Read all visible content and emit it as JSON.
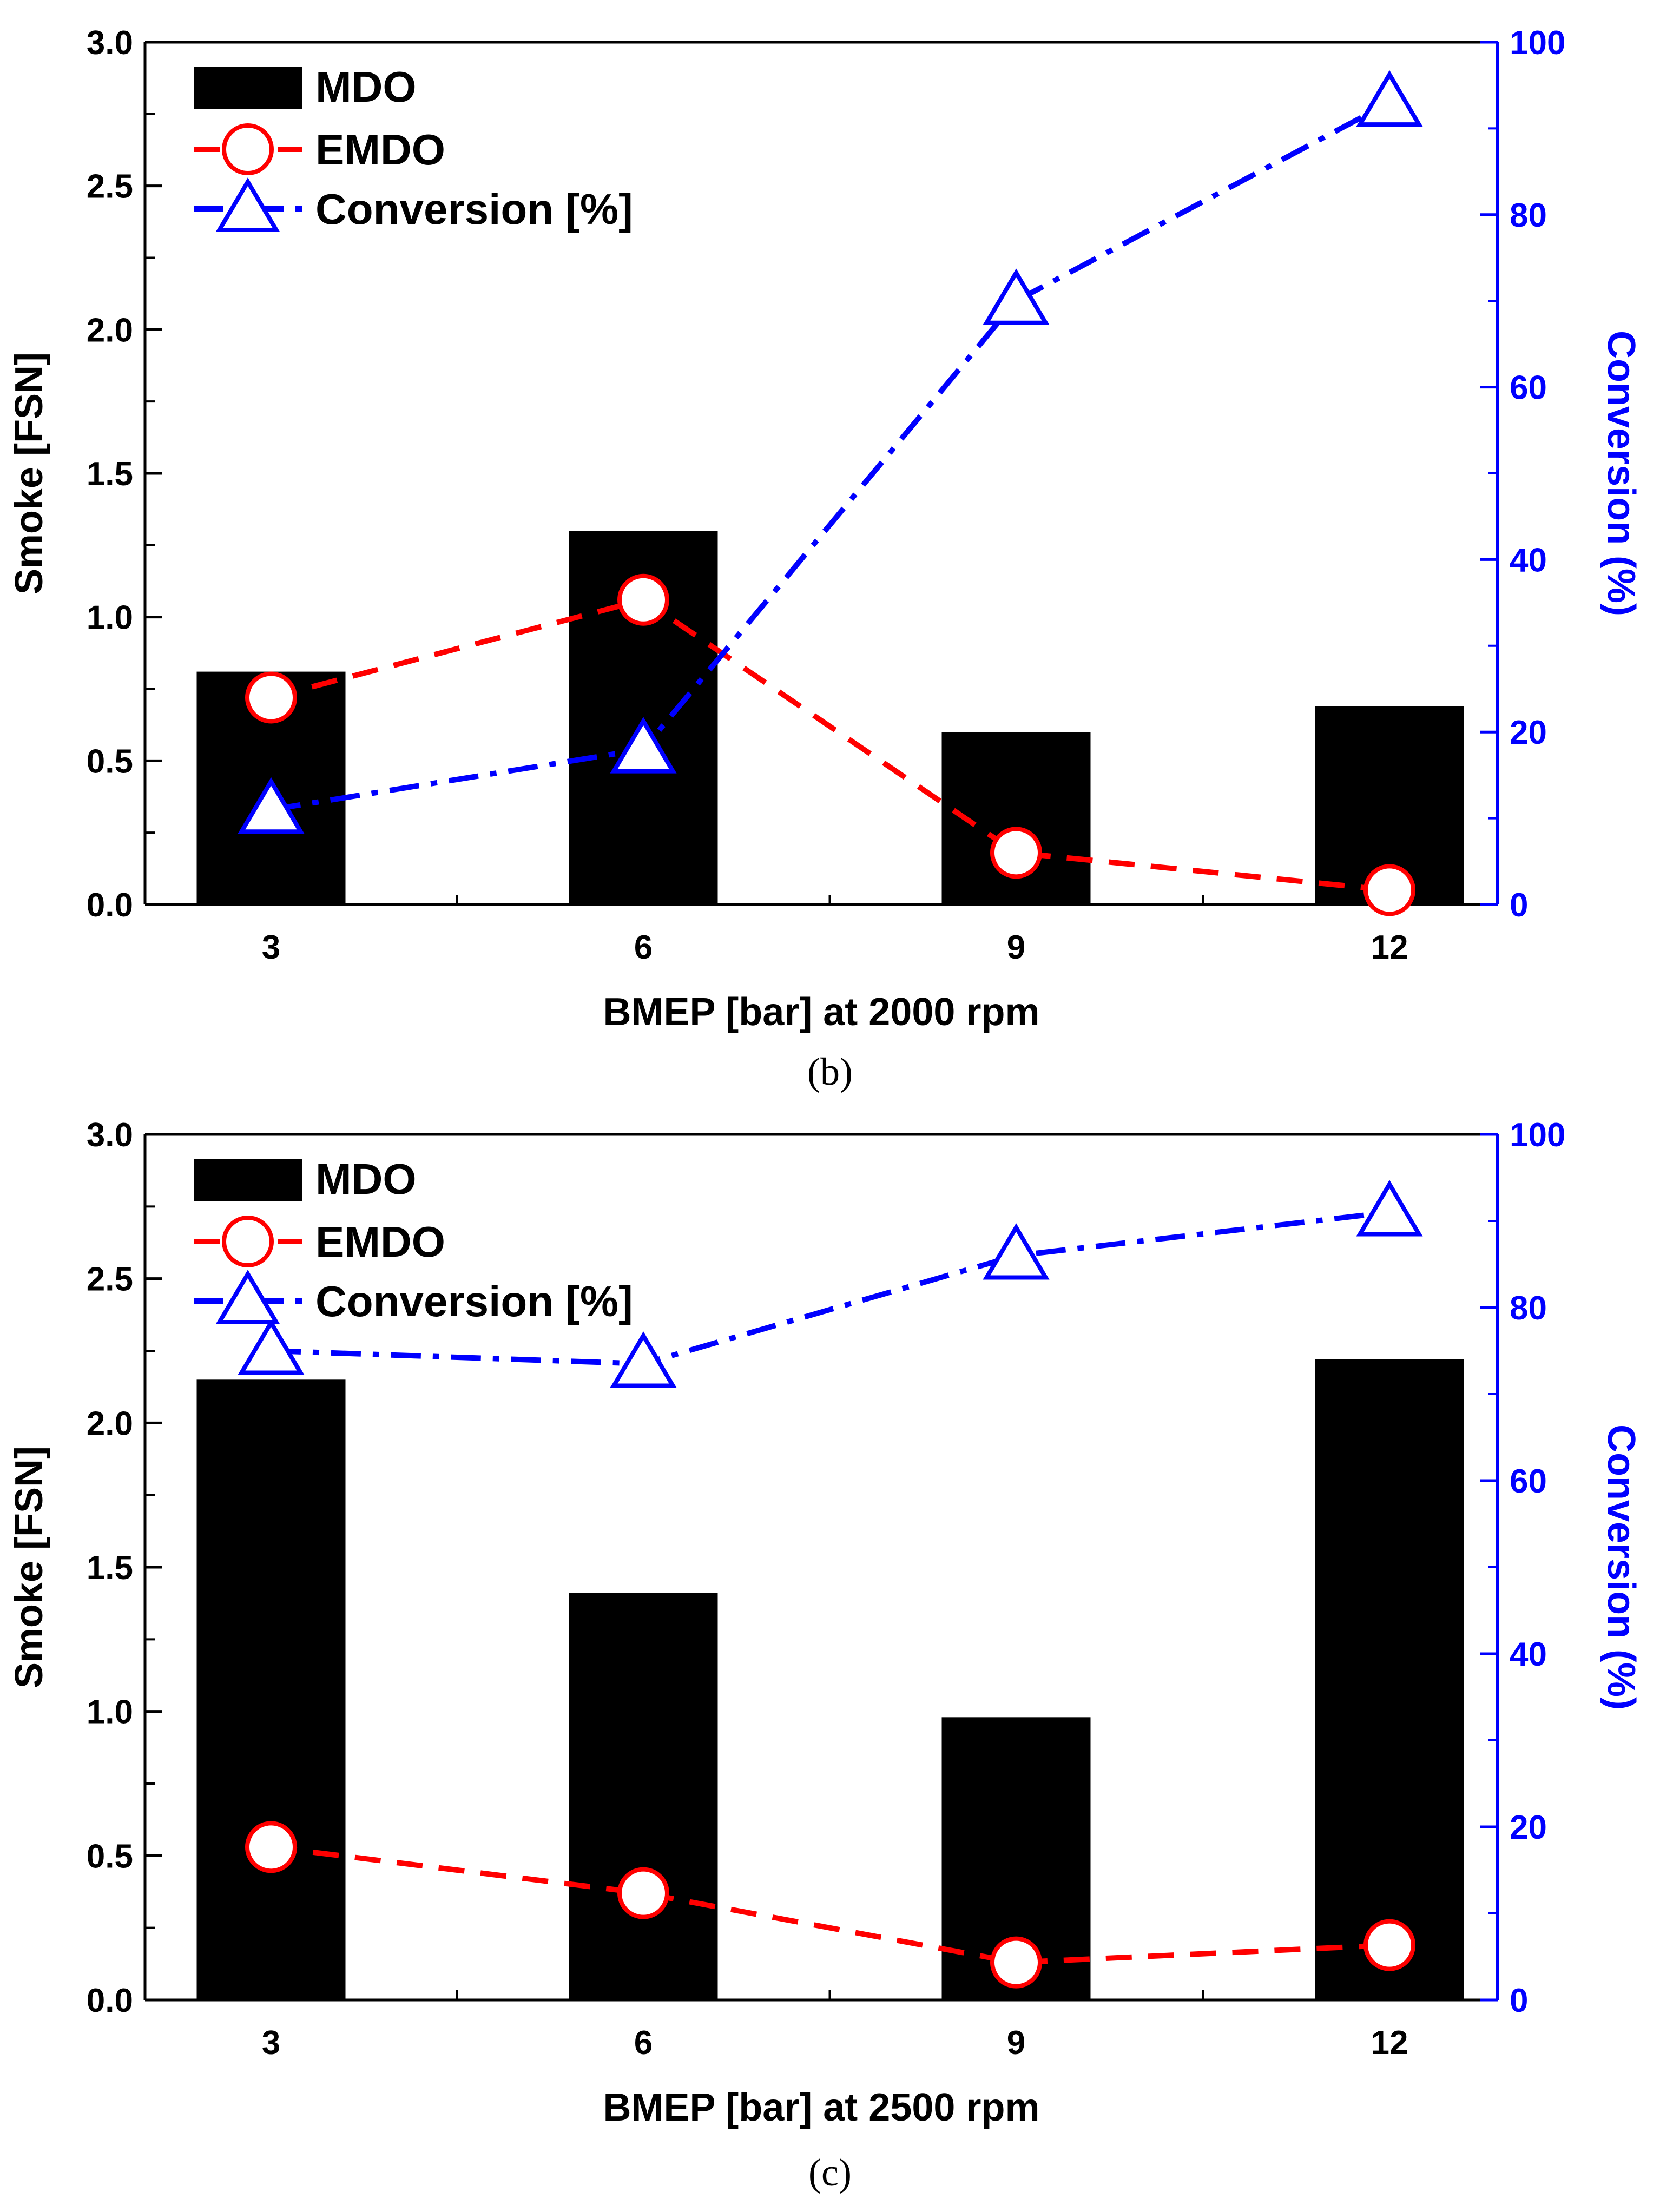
{
  "colors": {
    "bar": "#000000",
    "emdo": "#ff0000",
    "conversion": "#0000ff",
    "axis": "#000000",
    "marker_fill": "#ffffff"
  },
  "chart_data": [
    {
      "type": "bar",
      "panel_label": "(b)",
      "categories": [
        "3",
        "6",
        "9",
        "12"
      ],
      "xlabel": "BMEP [bar] at 2000 rpm",
      "ylabel": "Smoke [FSN]",
      "y2label": "Conversion (%)",
      "ylim": [
        0,
        3.0
      ],
      "y2lim": [
        0,
        100
      ],
      "yticks": [
        "0.0",
        "0.5",
        "1.0",
        "1.5",
        "2.0",
        "2.5",
        "3.0"
      ],
      "y2ticks": [
        "0",
        "20",
        "40",
        "60",
        "80",
        "100"
      ],
      "legend": {
        "position": "top-left",
        "entries": [
          "MDO",
          "EMDO",
          "Conversion [%]"
        ]
      },
      "series": [
        {
          "name": "MDO",
          "kind": "bar",
          "axis": "left",
          "values": [
            0.81,
            1.3,
            0.6,
            0.69
          ]
        },
        {
          "name": "EMDO",
          "kind": "line",
          "style": "dashed",
          "marker": "circle",
          "axis": "left",
          "values": [
            0.72,
            1.06,
            0.18,
            0.05
          ]
        },
        {
          "name": "Conversion [%]",
          "kind": "line",
          "style": "dash-dot",
          "marker": "triangle",
          "axis": "right",
          "values": [
            11,
            18,
            70,
            93
          ]
        }
      ]
    },
    {
      "type": "bar",
      "panel_label": "(c)",
      "categories": [
        "3",
        "6",
        "9",
        "12"
      ],
      "xlabel": "BMEP [bar] at 2500 rpm",
      "ylabel": "Smoke [FSN]",
      "y2label": "Conversion (%)",
      "ylim": [
        0,
        3.0
      ],
      "y2lim": [
        0,
        100
      ],
      "yticks": [
        "0.0",
        "0.5",
        "1.0",
        "1.5",
        "2.0",
        "2.5",
        "3.0"
      ],
      "y2ticks": [
        "0",
        "20",
        "40",
        "60",
        "80",
        "100"
      ],
      "legend": {
        "position": "top-left",
        "entries": [
          "MDO",
          "EMDO",
          "Conversion [%]"
        ]
      },
      "series": [
        {
          "name": "MDO",
          "kind": "bar",
          "axis": "left",
          "values": [
            2.15,
            1.41,
            0.98,
            2.22
          ]
        },
        {
          "name": "EMDO",
          "kind": "line",
          "style": "dashed",
          "marker": "circle",
          "axis": "left",
          "values": [
            0.53,
            0.37,
            0.13,
            0.19
          ]
        },
        {
          "name": "Conversion [%]",
          "kind": "line",
          "style": "dash-dot",
          "marker": "triangle",
          "axis": "right",
          "values": [
            75,
            73.5,
            86,
            91
          ]
        }
      ]
    }
  ]
}
